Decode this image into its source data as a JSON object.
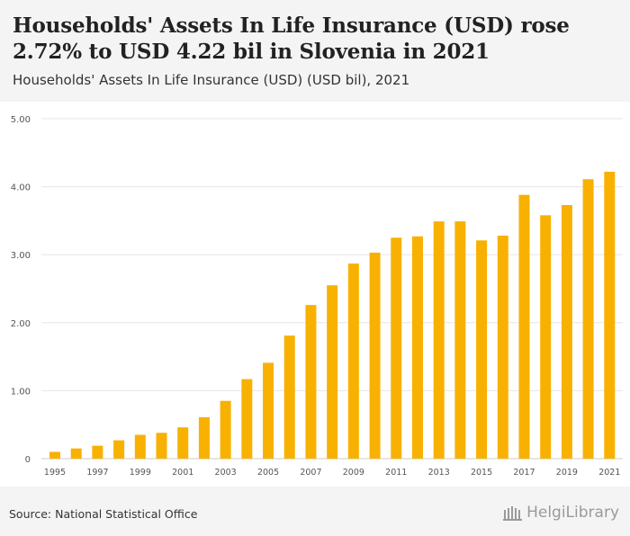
{
  "header": {
    "title": "Households' Assets In Life Insurance (USD) rose 2.72% to USD 4.22 bil in Slovenia in 2021",
    "subtitle": "Households' Assets In Life Insurance (USD) (USD bil), 2021"
  },
  "footer": {
    "source": "Source: National Statistical Office",
    "brand": "HelgiLibrary"
  },
  "colors": {
    "bar": "#f8b100",
    "grid": "#e6e6e6",
    "axis_text": "#555555"
  },
  "chart_data": {
    "type": "bar",
    "title": "Households' Assets In Life Insurance (USD) (USD bil), 2021",
    "xlabel": "",
    "ylabel": "USD bil",
    "ylim": [
      0,
      5
    ],
    "yticks": [
      0,
      1,
      2,
      3,
      4,
      5
    ],
    "ytick_labels": [
      "0",
      "1.00",
      "2.00",
      "3.00",
      "4.00",
      "5.00"
    ],
    "grid": true,
    "categories": [
      "1995",
      "1996",
      "1997",
      "1998",
      "1999",
      "2000",
      "2001",
      "2002",
      "2003",
      "2004",
      "2005",
      "2006",
      "2007",
      "2008",
      "2009",
      "2010",
      "2011",
      "2012",
      "2013",
      "2014",
      "2015",
      "2016",
      "2017",
      "2018",
      "2019",
      "2020",
      "2021"
    ],
    "xtick_labels": [
      "1995",
      "",
      "1997",
      "",
      "1999",
      "",
      "2001",
      "",
      "2003",
      "",
      "2005",
      "",
      "2007",
      "",
      "2009",
      "",
      "2011",
      "",
      "2013",
      "",
      "2015",
      "",
      "2017",
      "",
      "2019",
      "",
      "2021"
    ],
    "values": [
      0.1,
      0.15,
      0.19,
      0.27,
      0.35,
      0.38,
      0.46,
      0.61,
      0.85,
      1.17,
      1.41,
      1.81,
      2.26,
      2.55,
      2.87,
      3.03,
      3.25,
      3.27,
      3.49,
      3.49,
      3.21,
      3.28,
      3.88,
      3.58,
      3.73,
      4.11,
      4.22
    ]
  }
}
